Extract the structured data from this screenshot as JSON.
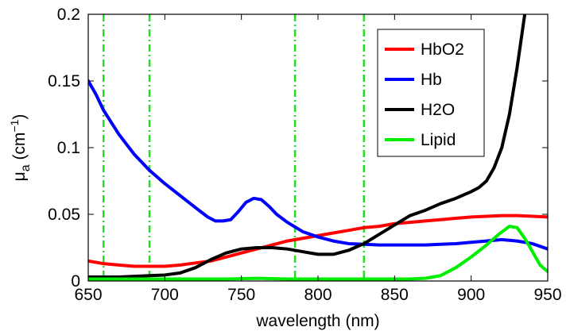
{
  "chart_data": {
    "type": "line",
    "xlabel": "wavelength (nm)",
    "ylabel": {
      "base": "μ",
      "sub": "a",
      "unit_open": " (cm",
      "unit_sup": "−1",
      "unit_close": ")"
    },
    "xlim": [
      650,
      950
    ],
    "ylim": [
      0,
      0.2
    ],
    "x_ticks": [
      650,
      700,
      750,
      800,
      850,
      900,
      950
    ],
    "x_tick_labels": [
      "650",
      "700",
      "750",
      "800",
      "850",
      "900",
      "950"
    ],
    "y_ticks": [
      0,
      0.05,
      0.1,
      0.15,
      0.2
    ],
    "y_tick_labels": [
      "0",
      "0.05",
      "0.1",
      "0.15",
      "0.2"
    ],
    "grid": false,
    "legend_position": "top-right",
    "vertical_lines": {
      "x": [
        660,
        690,
        785,
        830
      ],
      "color": "#22dd22",
      "style": "dash-dot"
    },
    "series": [
      {
        "name": "HbO2",
        "color": "#ff0000",
        "points": [
          [
            650,
            0.015
          ],
          [
            660,
            0.013
          ],
          [
            670,
            0.012
          ],
          [
            680,
            0.011
          ],
          [
            690,
            0.011
          ],
          [
            700,
            0.011
          ],
          [
            710,
            0.012
          ],
          [
            720,
            0.0135
          ],
          [
            730,
            0.015
          ],
          [
            740,
            0.018
          ],
          [
            750,
            0.021
          ],
          [
            760,
            0.024
          ],
          [
            770,
            0.027
          ],
          [
            780,
            0.03
          ],
          [
            790,
            0.032
          ],
          [
            800,
            0.034
          ],
          [
            810,
            0.036
          ],
          [
            820,
            0.038
          ],
          [
            830,
            0.04
          ],
          [
            840,
            0.041
          ],
          [
            850,
            0.043
          ],
          [
            860,
            0.044
          ],
          [
            870,
            0.045
          ],
          [
            880,
            0.046
          ],
          [
            890,
            0.047
          ],
          [
            900,
            0.048
          ],
          [
            910,
            0.0485
          ],
          [
            920,
            0.049
          ],
          [
            930,
            0.049
          ],
          [
            940,
            0.0485
          ],
          [
            950,
            0.048
          ]
        ]
      },
      {
        "name": "Hb",
        "color": "#0000ff",
        "points": [
          [
            650,
            0.15
          ],
          [
            655,
            0.14
          ],
          [
            660,
            0.128
          ],
          [
            670,
            0.11
          ],
          [
            680,
            0.095
          ],
          [
            690,
            0.083
          ],
          [
            700,
            0.073
          ],
          [
            710,
            0.064
          ],
          [
            720,
            0.055
          ],
          [
            728,
            0.048
          ],
          [
            733,
            0.045
          ],
          [
            738,
            0.045
          ],
          [
            743,
            0.046
          ],
          [
            748,
            0.052
          ],
          [
            753,
            0.059
          ],
          [
            758,
            0.062
          ],
          [
            763,
            0.061
          ],
          [
            768,
            0.056
          ],
          [
            773,
            0.05
          ],
          [
            780,
            0.044
          ],
          [
            790,
            0.037
          ],
          [
            800,
            0.033
          ],
          [
            810,
            0.03
          ],
          [
            820,
            0.028
          ],
          [
            830,
            0.0275
          ],
          [
            840,
            0.027
          ],
          [
            850,
            0.027
          ],
          [
            860,
            0.027
          ],
          [
            870,
            0.027
          ],
          [
            880,
            0.0275
          ],
          [
            890,
            0.028
          ],
          [
            900,
            0.029
          ],
          [
            910,
            0.03
          ],
          [
            920,
            0.031
          ],
          [
            930,
            0.03
          ],
          [
            940,
            0.028
          ],
          [
            950,
            0.024
          ]
        ]
      },
      {
        "name": "H2O",
        "color": "#000000",
        "points": [
          [
            650,
            0.003
          ],
          [
            660,
            0.003
          ],
          [
            670,
            0.003
          ],
          [
            680,
            0.0035
          ],
          [
            690,
            0.004
          ],
          [
            700,
            0.0045
          ],
          [
            710,
            0.006
          ],
          [
            720,
            0.01
          ],
          [
            730,
            0.016
          ],
          [
            740,
            0.021
          ],
          [
            750,
            0.024
          ],
          [
            760,
            0.025
          ],
          [
            770,
            0.025
          ],
          [
            780,
            0.024
          ],
          [
            790,
            0.022
          ],
          [
            800,
            0.02
          ],
          [
            810,
            0.02
          ],
          [
            820,
            0.023
          ],
          [
            830,
            0.028
          ],
          [
            840,
            0.035
          ],
          [
            850,
            0.042
          ],
          [
            860,
            0.049
          ],
          [
            870,
            0.053
          ],
          [
            880,
            0.058
          ],
          [
            890,
            0.062
          ],
          [
            900,
            0.067
          ],
          [
            905,
            0.07
          ],
          [
            910,
            0.075
          ],
          [
            915,
            0.085
          ],
          [
            920,
            0.1
          ],
          [
            925,
            0.125
          ],
          [
            930,
            0.16
          ],
          [
            935,
            0.2
          ]
        ]
      },
      {
        "name": "Lipid",
        "color": "#00ee00",
        "points": [
          [
            650,
            0.0015
          ],
          [
            700,
            0.0015
          ],
          [
            740,
            0.0015
          ],
          [
            760,
            0.002
          ],
          [
            780,
            0.0015
          ],
          [
            850,
            0.0015
          ],
          [
            860,
            0.0015
          ],
          [
            870,
            0.002
          ],
          [
            880,
            0.004
          ],
          [
            890,
            0.01
          ],
          [
            900,
            0.018
          ],
          [
            910,
            0.027
          ],
          [
            918,
            0.035
          ],
          [
            925,
            0.041
          ],
          [
            930,
            0.04
          ],
          [
            935,
            0.032
          ],
          [
            940,
            0.022
          ],
          [
            945,
            0.012
          ],
          [
            950,
            0.007
          ]
        ]
      }
    ]
  }
}
